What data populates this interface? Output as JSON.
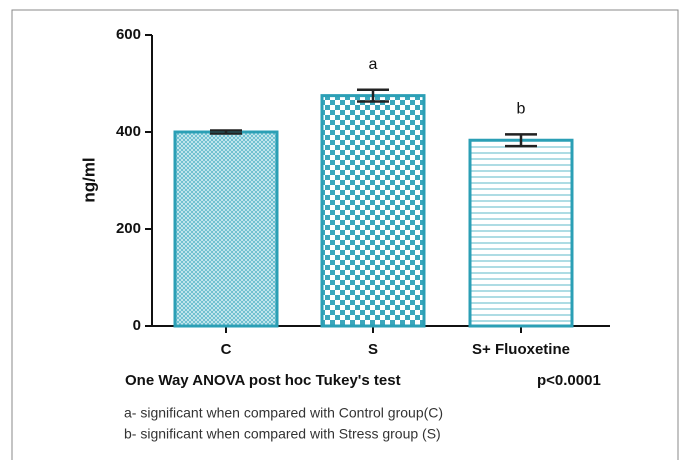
{
  "chart_data": {
    "type": "bar",
    "y_label": "ng/ml",
    "categories": [
      "C",
      "S",
      "S+ Fluoxetine"
    ],
    "values": [
      400,
      475,
      383
    ],
    "errors": [
      3,
      12,
      12
    ],
    "bar_labels": [
      null,
      "a",
      "b"
    ],
    "color": "#2b9fb5",
    "ylim": [
      0,
      600
    ],
    "yticks": [
      0,
      200,
      400,
      600
    ],
    "test_label": "One Way ANOVA post hoc Tukey's test",
    "p_value": "p<0.0001",
    "notes": [
      "a- significant when compared with Control group(C)",
      "b- significant when compared with Stress group (S)"
    ]
  }
}
